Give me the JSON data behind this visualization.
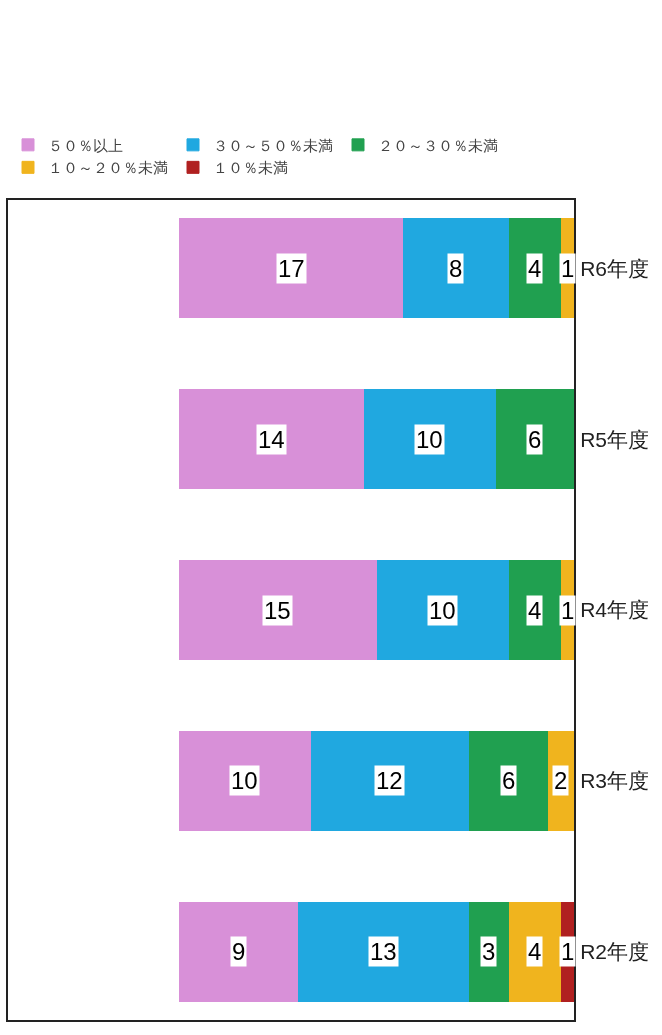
{
  "chart_data": {
    "type": "bar",
    "stacked": true,
    "orientation": "horizontal",
    "categories": [
      "R6年度",
      "R5年度",
      "R4年度",
      "R3年度",
      "R2年度"
    ],
    "series": [
      {
        "name": "１０％未満",
        "color": "#b02020",
        "values": [
          null,
          null,
          null,
          null,
          1
        ]
      },
      {
        "name": "１０～２０％未満",
        "color": "#f0b41e",
        "values": [
          1,
          null,
          1,
          2,
          4
        ]
      },
      {
        "name": "２０～３０％未満",
        "color": "#20a050",
        "values": [
          4,
          6,
          4,
          6,
          3
        ]
      },
      {
        "name": "３０～５０％未満",
        "color": "#20a8e0",
        "values": [
          8,
          10,
          10,
          12,
          13
        ]
      },
      {
        "name": "５０％以上",
        "color": "#d890d8",
        "values": [
          17,
          14,
          15,
          10,
          9
        ]
      }
    ],
    "xlim": [
      43,
      0
    ],
    "tick_labels": "y",
    "data_labels": true,
    "grid": false,
    "legend": "top"
  }
}
